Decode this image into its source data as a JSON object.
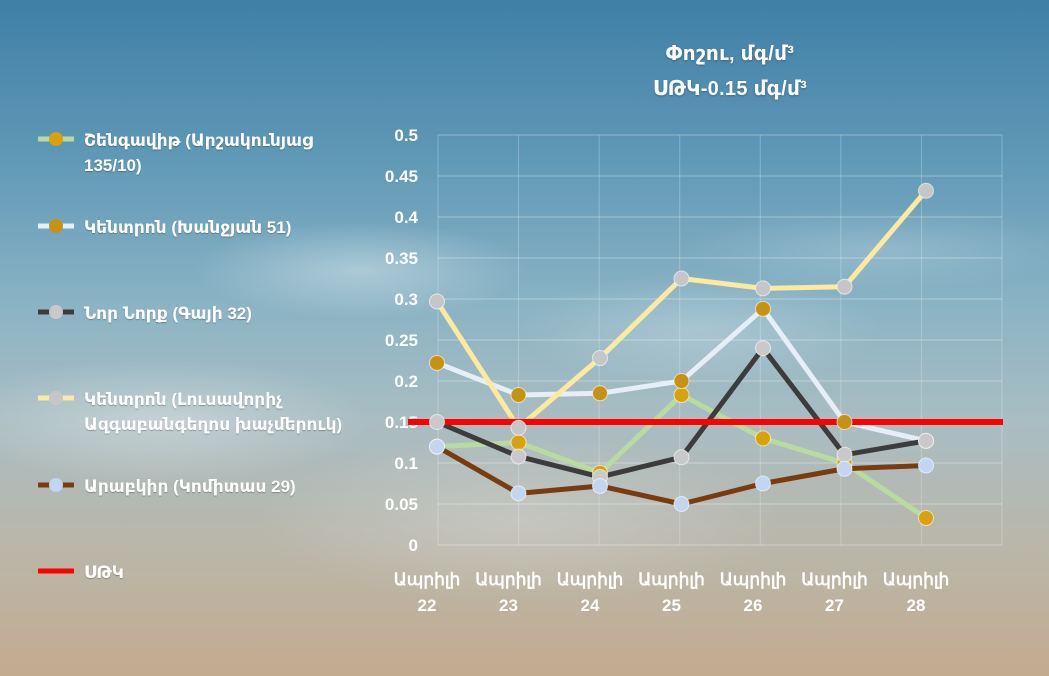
{
  "chart_data": {
    "type": "line",
    "title": "Փոշու, մգ/մ³",
    "subtitle": "ՍԹԿ-0.15 մգ/մ³",
    "categories": [
      [
        "Ապրիլի",
        "22"
      ],
      [
        "Ապրիլի",
        "23"
      ],
      [
        "Ապրիլի",
        "24"
      ],
      [
        "Ապրիլի",
        "25"
      ],
      [
        "Ապրիլի",
        "26"
      ],
      [
        "Ապրիլի",
        "27"
      ],
      [
        "Ապրիլի",
        "28"
      ]
    ],
    "ylim": [
      0,
      0.5
    ],
    "yticks": [
      "0",
      "0.05",
      "0.1",
      "0.15",
      "0.2",
      "0.25",
      "0.3",
      "0.35",
      "0.4",
      "0.45",
      "0.5"
    ],
    "grid": true,
    "legend_position": "left",
    "series": [
      {
        "name": "Շենգավիթ (Արշակունյաց 135/10)",
        "line_color": "#b9dba0",
        "marker_color": "#d9a20c",
        "values": [
          0.12,
          0.125,
          0.088,
          0.183,
          0.13,
          0.1,
          0.033
        ]
      },
      {
        "name": "Կենտրոն (Խանջյան 51)",
        "line_color": "#e6eef7",
        "marker_color": "#c79211",
        "values": [
          0.222,
          0.183,
          0.185,
          0.2,
          0.288,
          0.15,
          0.127
        ]
      },
      {
        "name": "Նոր Նորք (Գայի 32)",
        "line_color": "#3c3c3c",
        "marker_color": "#c9c9c9",
        "values": [
          0.15,
          0.108,
          0.083,
          0.107,
          0.24,
          0.11,
          0.127
        ]
      },
      {
        "name": "Կենտրոն (Լուսավորիչ Ազգաբանգեղոս խաչմերուկ)",
        "line_color": "#fde9a0",
        "marker_color": "#c6c6c6",
        "values": [
          0.297,
          0.143,
          0.228,
          0.325,
          0.313,
          0.315,
          0.432
        ]
      },
      {
        "name": "Արաբկիր (Կոմիտաս 29)",
        "line_color": "#7a3b10",
        "marker_color": "#c2d6f2",
        "values": [
          0.12,
          0.063,
          0.072,
          0.05,
          0.075,
          0.093,
          0.097
        ]
      },
      {
        "name": "ՍԹԿ",
        "line_color": "#ff0000",
        "marker_color": null,
        "values": [
          0.15,
          0.15,
          0.15,
          0.15,
          0.15,
          0.15,
          0.15
        ]
      }
    ]
  },
  "legend": {
    "items": [
      {
        "lines": [
          "Շենգավիթ (Արշակունյաց",
          "135/10)"
        ]
      },
      {
        "lines": [
          "Կենտրոն (Խանջյան 51)"
        ]
      },
      {
        "lines": [
          "Նոր Նորք (Գայի 32)"
        ]
      },
      {
        "lines": [
          "Կենտրոն (Լուսավորիչ",
          "Ազգաբանգեղոս խաչմերուկ)"
        ]
      },
      {
        "lines": [
          "Արաբկիր (Կոմիտաս 29)"
        ]
      },
      {
        "lines": [
          "ՍԹԿ"
        ]
      }
    ]
  }
}
